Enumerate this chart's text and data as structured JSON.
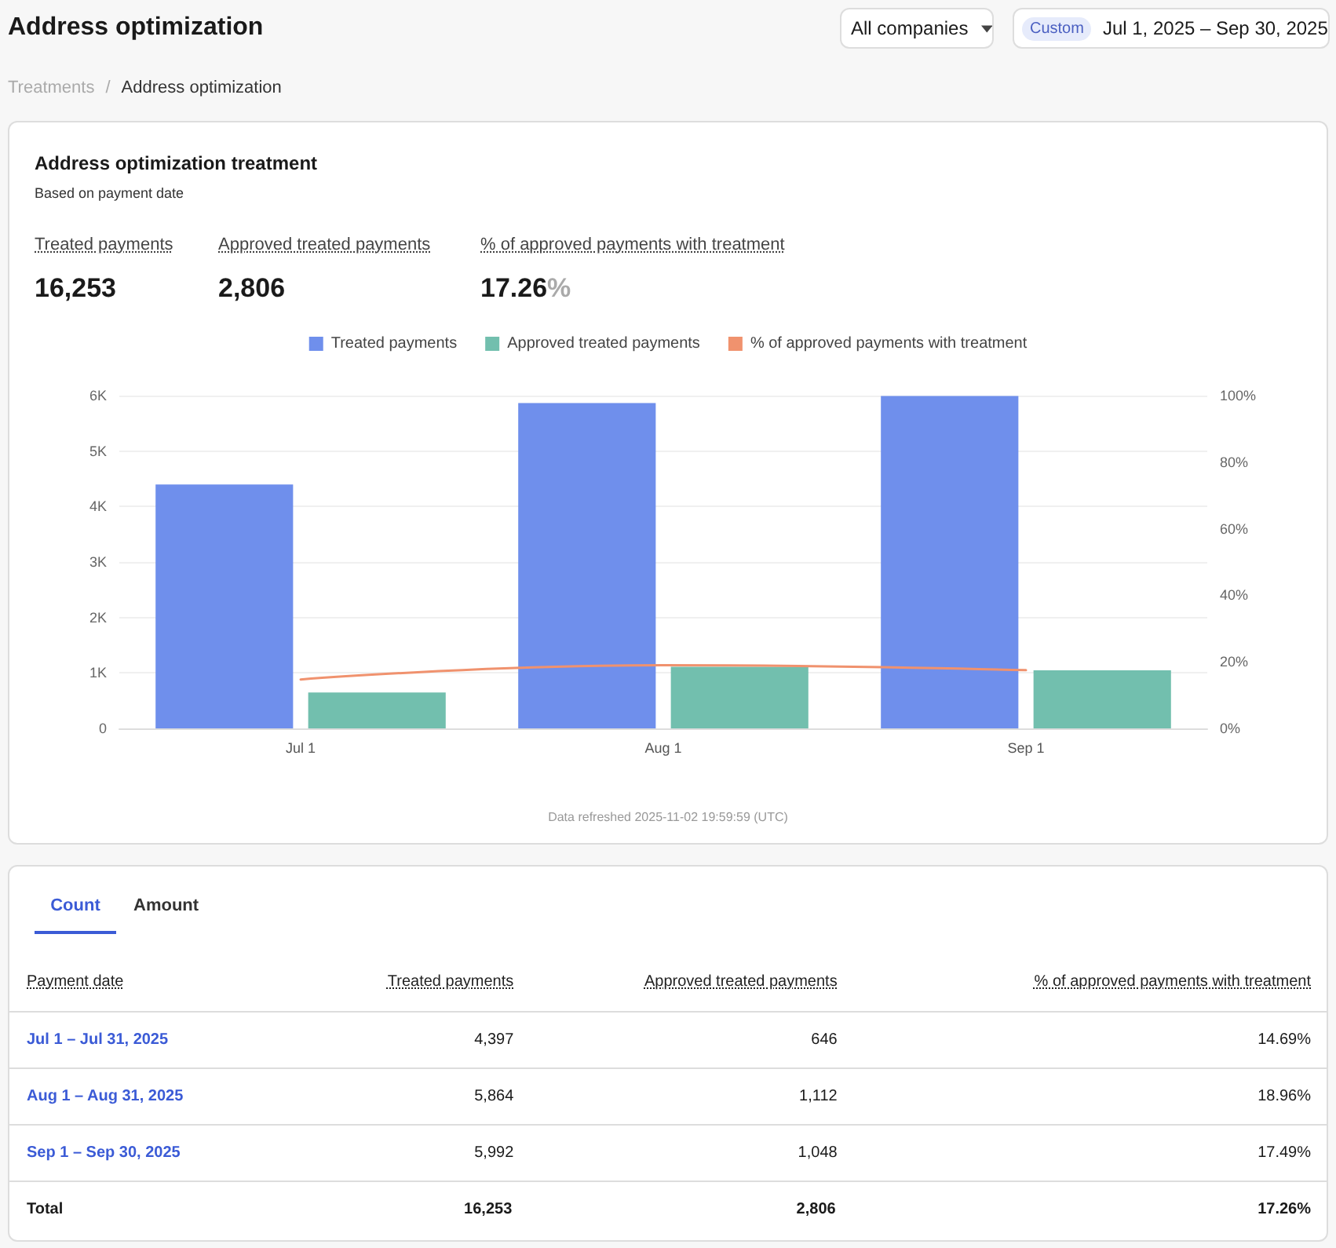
{
  "chart_data": {
    "type": "bar",
    "title": "Address optimization treatment",
    "subtitle": "Based on payment date",
    "categories": [
      "Jul 1",
      "Aug 1",
      "Sep 1"
    ],
    "series": [
      {
        "name": "Treated payments",
        "color": "#6f8fec",
        "values": [
          4397,
          5864,
          5992
        ]
      },
      {
        "name": "Approved treated payments",
        "color": "#72bfae",
        "values": [
          646,
          1112,
          1048
        ]
      },
      {
        "name": "% of approved payments with treatment",
        "type": "line",
        "axis": "y2",
        "color": "#f0926e",
        "values": [
          14.69,
          18.96,
          17.49
        ]
      }
    ],
    "ylim": [
      0,
      6000
    ],
    "yticks": [
      0,
      {
        "value": 1000,
        "label": "1K"
      },
      {
        "value": 2000,
        "label": "2K"
      },
      {
        "value": 3000,
        "label": "3K"
      },
      {
        "value": 4000,
        "label": "4K"
      },
      {
        "value": 5000,
        "label": "5K"
      },
      {
        "value": 6000,
        "label": "6K"
      }
    ],
    "y2lim": [
      0,
      100
    ],
    "y2ticks": [
      {
        "value": 0,
        "label": "0%"
      },
      {
        "value": 20,
        "label": "20%"
      },
      {
        "value": 40,
        "label": "40%"
      },
      {
        "value": 60,
        "label": "60%"
      },
      {
        "value": 80,
        "label": "80%"
      },
      {
        "value": 100,
        "label": "100%"
      }
    ],
    "grid": "y",
    "legend": "top",
    "marker": "none",
    "annotations": [
      "Address optimization",
      "All companies",
      "Custom",
      "Jul 1, 2025 – Sep 30, 2025",
      "Treatments",
      "Address optimization",
      "16,253",
      "2,806",
      "17.26",
      "%",
      "Data refreshed 2025-11-02 19:59:59 (UTC)",
      "Count",
      "Amount",
      "Payment date",
      "Jul 1 – Jul 31, 2025",
      "Aug 1 – Aug 31, 2025",
      "Sep 1 – Sep 30, 2025",
      "Total",
      "17.26%",
      "/",
      "4,397",
      "646",
      "14.69%",
      "5,864",
      "1,112",
      "18.96%",
      "5,992",
      "1,048",
      "17.49%"
    ]
  }
}
